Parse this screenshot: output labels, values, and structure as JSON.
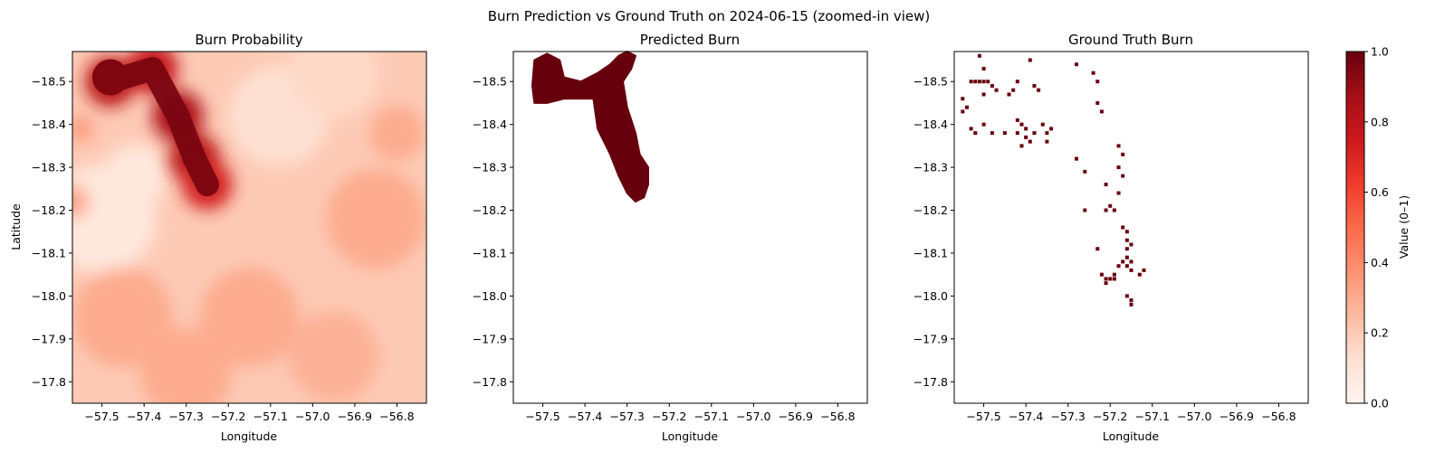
{
  "figure": {
    "suptitle": "Burn Prediction vs Ground Truth on 2024-06-15 (zoomed-in view)"
  },
  "chart_data": [
    {
      "type": "heatmap",
      "title": "Burn Probability",
      "xlabel": "Longitude",
      "ylabel": "Latitude",
      "xlim": [
        -57.57,
        -56.73
      ],
      "ylim": [
        -17.75,
        -18.57
      ],
      "y_axis_inverted": true,
      "xticks": [
        -57.5,
        -57.4,
        -57.3,
        -57.2,
        -57.1,
        -57.0,
        -56.9,
        -56.8
      ],
      "xtick_labels": [
        "−57.5",
        "−57.4",
        "−57.3",
        "−57.2",
        "−57.1",
        "−57.0",
        "−56.9",
        "−56.8"
      ],
      "yticks": [
        -18.5,
        -18.4,
        -18.3,
        -18.2,
        -18.1,
        -18.0,
        -17.9,
        -17.8
      ],
      "ytick_labels": [
        "−18.5",
        "−18.4",
        "−18.3",
        "−18.2",
        "−18.1",
        "−18.0",
        "−17.9",
        "−17.8"
      ],
      "colormap": "Reds",
      "value_range": [
        0,
        1
      ],
      "description_of_values": {
        "background_probability": 0.2,
        "high_probability_core": [
          {
            "lon": -57.48,
            "lat": -18.5,
            "value": 0.95
          },
          {
            "lon": -57.38,
            "lat": -18.53,
            "value": 0.9
          },
          {
            "lon": -57.32,
            "lat": -18.42,
            "value": 1.0
          },
          {
            "lon": -57.28,
            "lat": -18.32,
            "value": 0.95
          },
          {
            "lon": -57.25,
            "lat": -18.26,
            "value": 0.85
          }
        ]
      }
    },
    {
      "type": "heatmap",
      "title": "Predicted Burn",
      "xlabel": "Longitude",
      "ylabel": "",
      "xlim": [
        -57.57,
        -56.73
      ],
      "ylim": [
        -17.75,
        -18.57
      ],
      "y_axis_inverted": true,
      "xticks": [
        -57.5,
        -57.4,
        -57.3,
        -57.2,
        -57.1,
        -57.0,
        -56.9,
        -56.8
      ],
      "xtick_labels": [
        "−57.5",
        "−57.4",
        "−57.3",
        "−57.2",
        "−57.1",
        "−57.0",
        "−56.9",
        "−56.8"
      ],
      "yticks": [
        -18.5,
        -18.4,
        -18.3,
        -18.2,
        -18.1,
        -18.0,
        -17.9,
        -17.8
      ],
      "ytick_labels": [
        "−18.5",
        "−18.4",
        "−18.3",
        "−18.2",
        "−18.1",
        "−18.0",
        "−17.9",
        "−17.8"
      ],
      "colormap": "Reds",
      "value_range": [
        0,
        1
      ],
      "burned_region_outline": [
        [
          -57.52,
          -18.55
        ],
        [
          -57.49,
          -18.565
        ],
        [
          -57.46,
          -18.55
        ],
        [
          -57.45,
          -18.51
        ],
        [
          -57.41,
          -18.5
        ],
        [
          -57.37,
          -18.52
        ],
        [
          -57.34,
          -18.54
        ],
        [
          -57.32,
          -18.56
        ],
        [
          -57.3,
          -18.57
        ],
        [
          -57.28,
          -18.56
        ],
        [
          -57.29,
          -18.53
        ],
        [
          -57.31,
          -18.5
        ],
        [
          -57.3,
          -18.44
        ],
        [
          -57.28,
          -18.38
        ],
        [
          -57.27,
          -18.33
        ],
        [
          -57.25,
          -18.3
        ],
        [
          -57.25,
          -18.26
        ],
        [
          -57.26,
          -18.23
        ],
        [
          -57.28,
          -18.22
        ],
        [
          -57.3,
          -18.24
        ],
        [
          -57.32,
          -18.28
        ],
        [
          -57.34,
          -18.33
        ],
        [
          -57.37,
          -18.39
        ],
        [
          -57.38,
          -18.46
        ],
        [
          -57.41,
          -18.46
        ],
        [
          -57.45,
          -18.46
        ],
        [
          -57.49,
          -18.45
        ],
        [
          -57.52,
          -18.45
        ],
        [
          -57.525,
          -18.49
        ]
      ]
    },
    {
      "type": "heatmap",
      "title": "Ground Truth Burn",
      "xlabel": "Longitude",
      "ylabel": "",
      "xlim": [
        -57.57,
        -56.73
      ],
      "ylim": [
        -17.75,
        -18.57
      ],
      "y_axis_inverted": true,
      "xticks": [
        -57.5,
        -57.4,
        -57.3,
        -57.2,
        -57.1,
        -57.0,
        -56.9,
        -56.8
      ],
      "xtick_labels": [
        "−57.5",
        "−57.4",
        "−57.3",
        "−57.2",
        "−57.1",
        "−57.0",
        "−56.9",
        "−56.8"
      ],
      "yticks": [
        -18.5,
        -18.4,
        -18.3,
        -18.2,
        -18.1,
        -18.0,
        -17.9,
        -17.8
      ],
      "ytick_labels": [
        "−18.5",
        "−18.4",
        "−18.3",
        "−18.2",
        "−18.1",
        "−18.0",
        "−17.9",
        "−17.8"
      ],
      "colormap": "Reds",
      "value_range": [
        0,
        1
      ],
      "burned_pixels_approx": [
        [
          -57.55,
          -18.46
        ],
        [
          -57.54,
          -18.44
        ],
        [
          -57.55,
          -18.43
        ],
        [
          -57.53,
          -18.5
        ],
        [
          -57.52,
          -18.5
        ],
        [
          -57.51,
          -18.5
        ],
        [
          -57.5,
          -18.5
        ],
        [
          -57.49,
          -18.5
        ],
        [
          -57.48,
          -18.49
        ],
        [
          -57.47,
          -18.48
        ],
        [
          -57.5,
          -18.47
        ],
        [
          -57.51,
          -18.56
        ],
        [
          -57.5,
          -18.53
        ],
        [
          -57.43,
          -18.48
        ],
        [
          -57.44,
          -18.47
        ],
        [
          -57.42,
          -18.5
        ],
        [
          -57.38,
          -18.49
        ],
        [
          -57.37,
          -18.48
        ],
        [
          -57.39,
          -18.55
        ],
        [
          -57.53,
          -18.39
        ],
        [
          -57.52,
          -18.38
        ],
        [
          -57.5,
          -18.4
        ],
        [
          -57.48,
          -18.38
        ],
        [
          -57.45,
          -18.38
        ],
        [
          -57.42,
          -18.41
        ],
        [
          -57.41,
          -18.4
        ],
        [
          -57.4,
          -18.39
        ],
        [
          -57.42,
          -18.38
        ],
        [
          -57.4,
          -18.37
        ],
        [
          -57.39,
          -18.36
        ],
        [
          -57.41,
          -18.35
        ],
        [
          -57.38,
          -18.38
        ],
        [
          -57.36,
          -18.4
        ],
        [
          -57.35,
          -18.38
        ],
        [
          -57.34,
          -18.39
        ],
        [
          -57.35,
          -18.36
        ],
        [
          -57.28,
          -18.54
        ],
        [
          -57.24,
          -18.52
        ],
        [
          -57.23,
          -18.5
        ],
        [
          -57.23,
          -18.45
        ],
        [
          -57.22,
          -18.43
        ],
        [
          -57.28,
          -18.32
        ],
        [
          -57.26,
          -18.29
        ],
        [
          -57.18,
          -18.35
        ],
        [
          -57.17,
          -18.33
        ],
        [
          -57.18,
          -18.3
        ],
        [
          -57.17,
          -18.28
        ],
        [
          -57.21,
          -18.2
        ],
        [
          -57.2,
          -18.21
        ],
        [
          -57.19,
          -18.2
        ],
        [
          -57.17,
          -18.16
        ],
        [
          -57.16,
          -18.15
        ],
        [
          -57.16,
          -18.13
        ],
        [
          -57.15,
          -18.12
        ],
        [
          -57.16,
          -18.11
        ],
        [
          -57.16,
          -18.09
        ],
        [
          -57.17,
          -18.08
        ],
        [
          -57.15,
          -18.08
        ],
        [
          -57.16,
          -18.07
        ],
        [
          -57.15,
          -18.06
        ],
        [
          -57.18,
          -18.07
        ],
        [
          -57.19,
          -18.05
        ],
        [
          -57.2,
          -18.04
        ],
        [
          -57.21,
          -18.03
        ],
        [
          -57.22,
          -18.05
        ],
        [
          -57.21,
          -18.04
        ],
        [
          -57.19,
          -18.04
        ],
        [
          -57.16,
          -18.0
        ],
        [
          -57.15,
          -17.99
        ],
        [
          -57.15,
          -17.98
        ],
        [
          -57.13,
          -18.05
        ],
        [
          -57.12,
          -18.06
        ],
        [
          -57.23,
          -18.11
        ],
        [
          -57.26,
          -18.2
        ],
        [
          -57.21,
          -18.26
        ],
        [
          -57.18,
          -18.24
        ]
      ]
    }
  ],
  "colorbar": {
    "label": "Value (0–1)",
    "ticks": [
      0.0,
      0.2,
      0.4,
      0.6,
      0.8,
      1.0
    ],
    "tick_labels": [
      "0.0",
      "0.2",
      "0.4",
      "0.6",
      "0.8",
      "1.0"
    ],
    "colormap": "Reds",
    "color_low": "#fff5f0",
    "color_mid": "#fb6a4a",
    "color_high": "#67000d"
  }
}
